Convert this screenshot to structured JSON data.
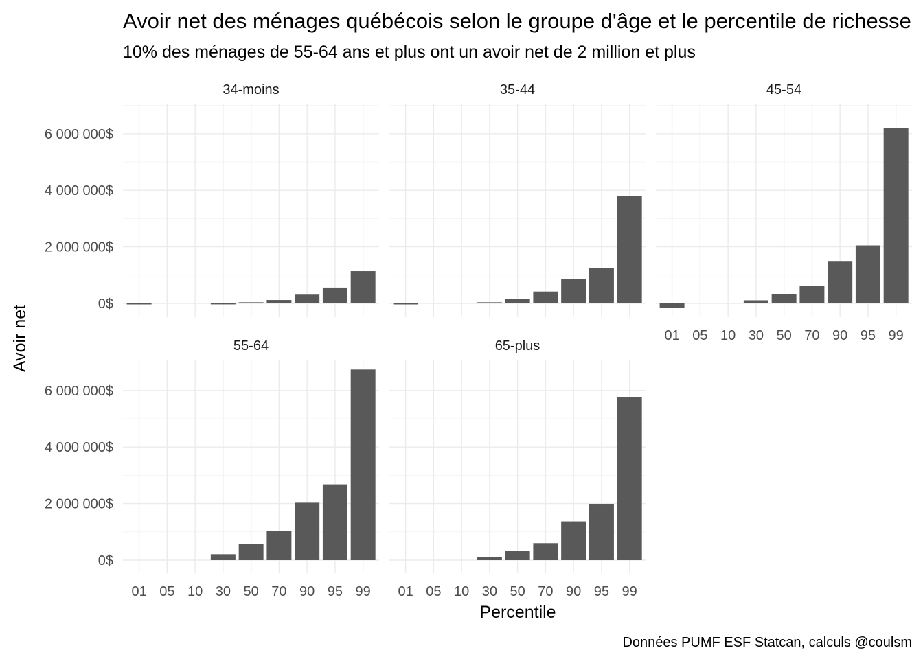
{
  "chart_data": {
    "type": "bar",
    "title": "Avoir net des ménages québécois selon le groupe d'âge et le percentile de richesse",
    "subtitle": "10% des ménages de 55-64 ans et plus ont un avoir net de 2 million et plus",
    "xlabel": "Percentile",
    "ylabel": "Avoir net",
    "caption": "Données PUMF ESF Statcan, calculs @coulsm",
    "categories": [
      "01",
      "05",
      "10",
      "30",
      "50",
      "70",
      "90",
      "95",
      "99"
    ],
    "yticks": [
      {
        "value": 0,
        "label": "0$"
      },
      {
        "value": 2000000,
        "label": "2 000 000$"
      },
      {
        "value": 4000000,
        "label": "4 000 000$"
      },
      {
        "value": 6000000,
        "label": "6 000 000$"
      }
    ],
    "ylim": [
      -200000,
      7100000
    ],
    "grid": true,
    "legend": "none",
    "facets": [
      {
        "name": "34-moins",
        "values": [
          -10000,
          0,
          0,
          2000,
          40000,
          120000,
          310000,
          560000,
          1140000
        ]
      },
      {
        "name": "35-44",
        "values": [
          -15000,
          0,
          0,
          40000,
          160000,
          420000,
          850000,
          1260000,
          3800000
        ]
      },
      {
        "name": "45-54",
        "values": [
          -150000,
          0,
          0,
          110000,
          330000,
          620000,
          1500000,
          2050000,
          6200000
        ]
      },
      {
        "name": "55-64",
        "values": [
          0,
          0,
          0,
          210000,
          570000,
          1030000,
          2030000,
          2680000,
          6740000
        ]
      },
      {
        "name": "65-plus",
        "values": [
          0,
          0,
          0,
          110000,
          330000,
          600000,
          1370000,
          1990000,
          5760000
        ]
      }
    ]
  }
}
